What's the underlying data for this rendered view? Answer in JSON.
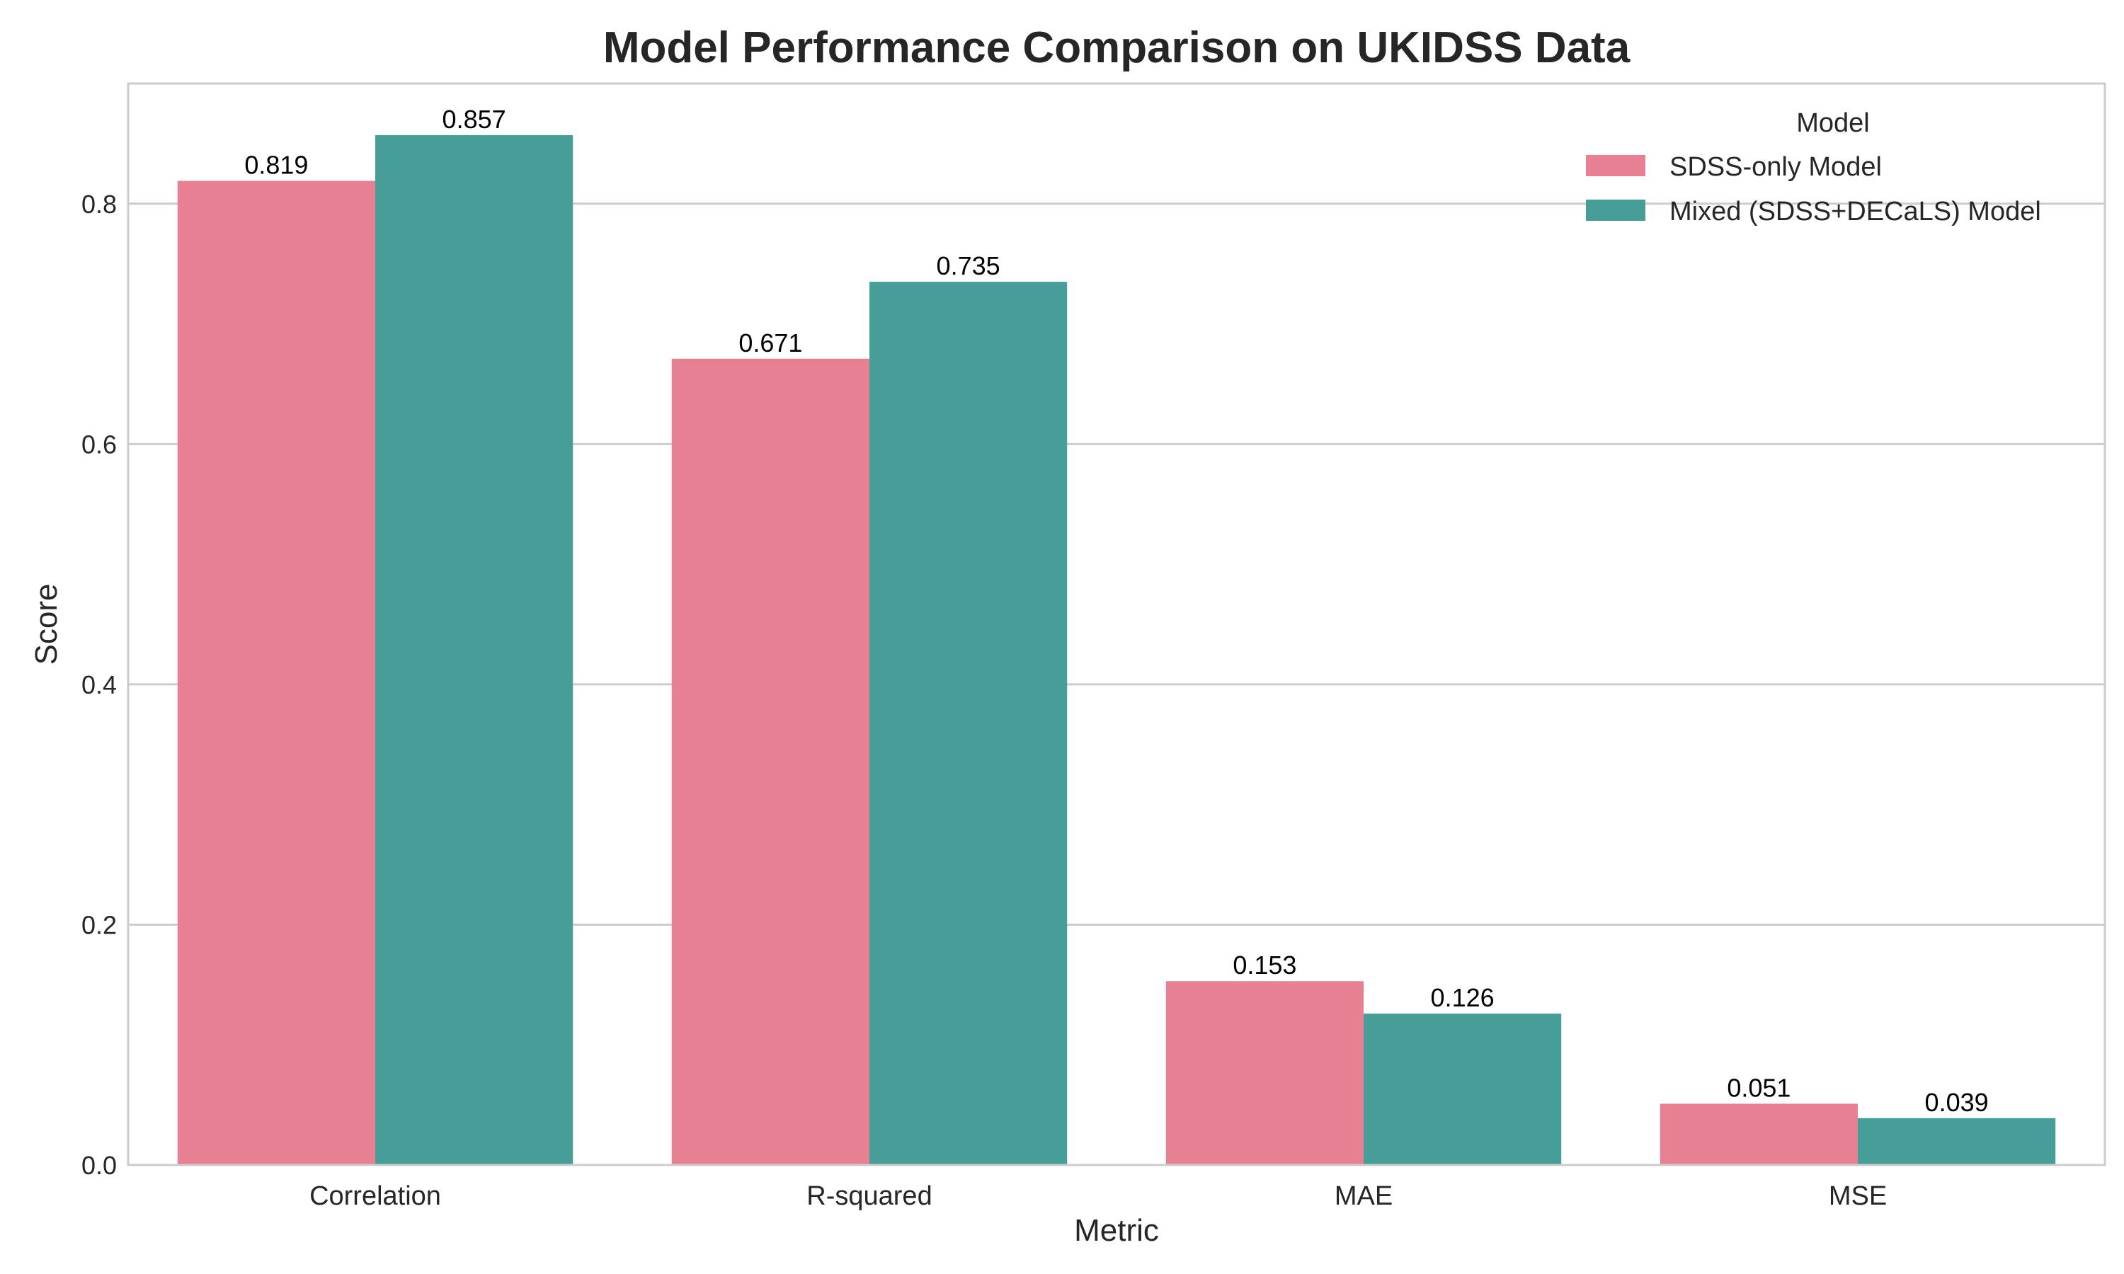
{
  "chart_data": {
    "type": "bar",
    "title": "Model Performance Comparison on UKIDSS Data",
    "xlabel": "Metric",
    "ylabel": "Score",
    "categories": [
      "Correlation",
      "R-squared",
      "MAE",
      "MSE"
    ],
    "series": [
      {
        "name": "SDSS-only Model",
        "color": "#e78093",
        "values": [
          0.819,
          0.671,
          0.153,
          0.051
        ],
        "labels": [
          "0.819",
          "0.671",
          "0.153",
          "0.051"
        ]
      },
      {
        "name": "Mixed (SDSS+DECaLS) Model",
        "color": "#479e98",
        "values": [
          0.857,
          0.735,
          0.126,
          0.039
        ],
        "labels": [
          "0.857",
          "0.735",
          "0.126",
          "0.039"
        ]
      }
    ],
    "ylim": [
      0,
      0.9
    ],
    "yticks": [
      0.0,
      0.2,
      0.4,
      0.6,
      0.8
    ],
    "ytick_labels": [
      "0.0",
      "0.2",
      "0.4",
      "0.6",
      "0.8"
    ],
    "grid": "horizontal",
    "legend": {
      "title": "Model",
      "placement": "top-right"
    },
    "colors": {
      "grid": "#cccccc",
      "frame": "#cccccc",
      "text": "#262626"
    }
  }
}
